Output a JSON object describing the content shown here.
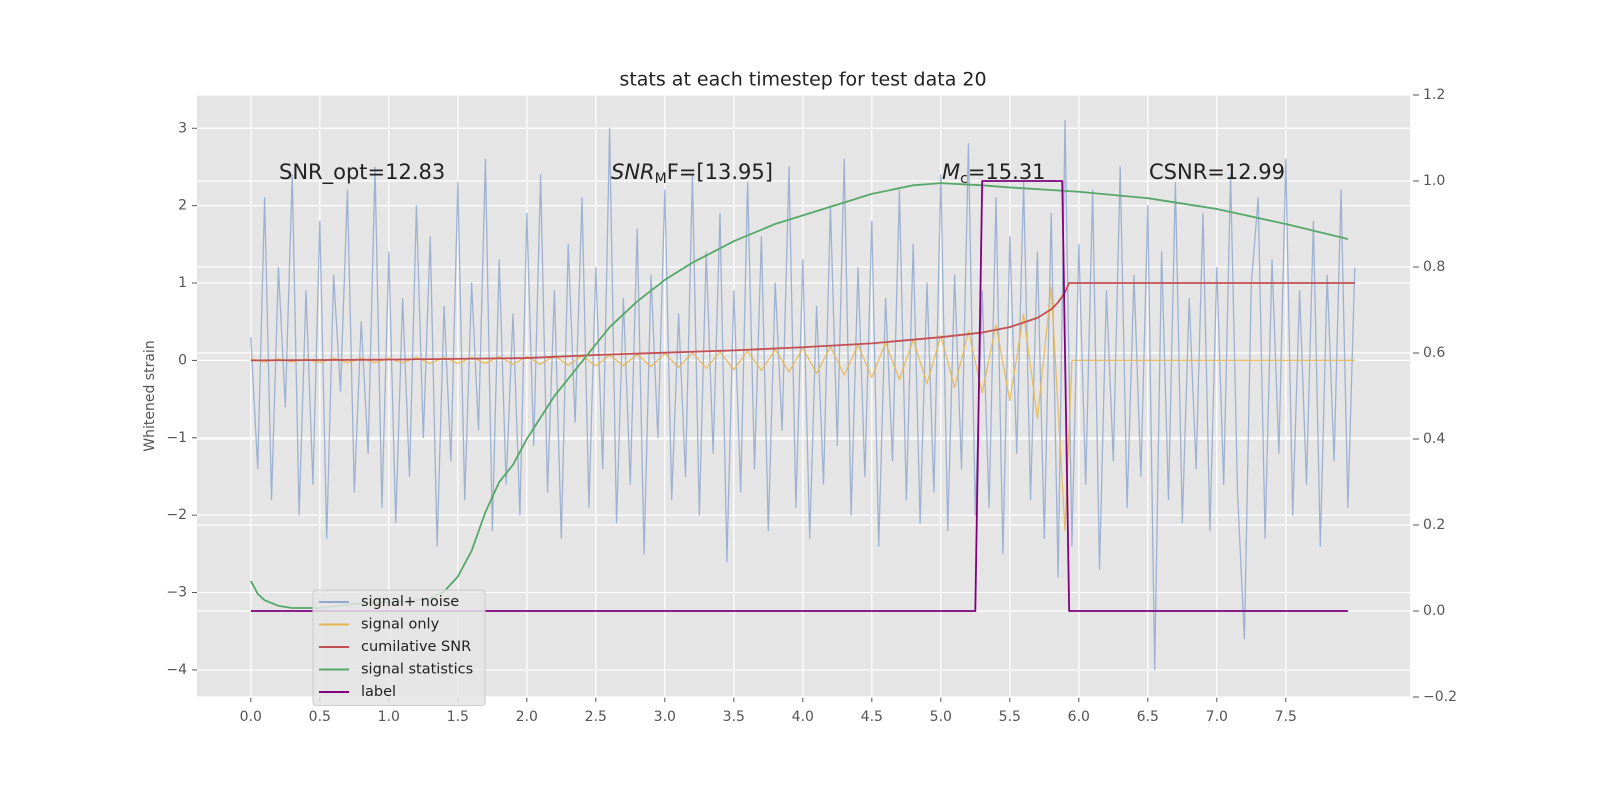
{
  "chart_data": {
    "type": "line",
    "title": "stats at each timestep for test data 20",
    "y_label": "Whitened strain",
    "annotations": [
      {
        "parts": [
          "SNR_opt=12.83"
        ]
      },
      {
        "parts": [
          "SNR",
          "M",
          "F=[13.95]"
        ]
      },
      {
        "parts": [
          "M",
          "c",
          "=15.31"
        ]
      },
      {
        "parts": [
          "CSNR=12.99"
        ]
      }
    ],
    "xlim": [
      -0.39,
      8.4
    ],
    "ylim": [
      -4.35,
      3.43
    ],
    "y2lim": [
      -0.2,
      1.2
    ],
    "xticks": [
      {
        "value": 0,
        "label": "0.0"
      },
      {
        "value": 0.5,
        "label": "0.5"
      },
      {
        "value": 1,
        "label": "1.0"
      },
      {
        "value": 1.5,
        "label": "1.5"
      },
      {
        "value": 2,
        "label": "2.0"
      },
      {
        "value": 2.5,
        "label": "2.5"
      },
      {
        "value": 3,
        "label": "3.0"
      },
      {
        "value": 3.5,
        "label": "3.5"
      },
      {
        "value": 4,
        "label": "4.0"
      },
      {
        "value": 4.5,
        "label": "4.5"
      },
      {
        "value": 5,
        "label": "5.0"
      },
      {
        "value": 5.5,
        "label": "5.5"
      },
      {
        "value": 6,
        "label": "6.0"
      },
      {
        "value": 6.5,
        "label": "6.5"
      },
      {
        "value": 7,
        "label": "7.0"
      },
      {
        "value": 7.5,
        "label": "7.5"
      }
    ],
    "yticks": [
      {
        "value": -4,
        "label": "−4"
      },
      {
        "value": -3,
        "label": "−3"
      },
      {
        "value": -2,
        "label": "−2"
      },
      {
        "value": -1,
        "label": "−1"
      },
      0,
      1,
      2,
      3
    ],
    "y2ticks": [
      {
        "value": -0.2,
        "label": "−0.2"
      },
      {
        "value": 0,
        "label": "0.0"
      },
      0.2,
      0.4,
      0.6,
      0.8,
      {
        "value": 1,
        "label": "1.0"
      },
      1.2
    ],
    "grid": true,
    "legend": "lower left",
    "series": [
      {
        "name": "signal+ noise",
        "color": "#92a8cd",
        "x": [
          0,
          0.05,
          0.1,
          0.15,
          0.2,
          0.25,
          0.3,
          0.35,
          0.4,
          0.45,
          0.5,
          0.55,
          0.6,
          0.65,
          0.7,
          0.75,
          0.8,
          0.85,
          0.9,
          0.95,
          1,
          1.05,
          1.1,
          1.15,
          1.2,
          1.25,
          1.3,
          1.35,
          1.4,
          1.45,
          1.5,
          1.55,
          1.6,
          1.65,
          1.7,
          1.75,
          1.8,
          1.85,
          1.9,
          1.95,
          2,
          2.05,
          2.1,
          2.15,
          2.2,
          2.25,
          2.3,
          2.35,
          2.4,
          2.45,
          2.5,
          2.55,
          2.6,
          2.65,
          2.7,
          2.75,
          2.8,
          2.85,
          2.9,
          2.95,
          3,
          3.05,
          3.1,
          3.15,
          3.2,
          3.25,
          3.3,
          3.35,
          3.4,
          3.45,
          3.5,
          3.55,
          3.6,
          3.65,
          3.7,
          3.75,
          3.8,
          3.85,
          3.9,
          3.95,
          4,
          4.05,
          4.1,
          4.15,
          4.2,
          4.25,
          4.3,
          4.35,
          4.4,
          4.45,
          4.5,
          4.55,
          4.6,
          4.65,
          4.7,
          4.75,
          4.8,
          4.85,
          4.9,
          4.95,
          5,
          5.05,
          5.1,
          5.15,
          5.2,
          5.25,
          5.3,
          5.35,
          5.4,
          5.45,
          5.5,
          5.55,
          5.6,
          5.65,
          5.7,
          5.75,
          5.8,
          5.85,
          5.9,
          5.95,
          6,
          6.05,
          6.1,
          6.15,
          6.2,
          6.25,
          6.3,
          6.35,
          6.4,
          6.45,
          6.5,
          6.55,
          6.6,
          6.65,
          6.7,
          6.75,
          6.8,
          6.85,
          6.9,
          6.95,
          7,
          7.05,
          7.1,
          7.15,
          7.2,
          7.25,
          7.3,
          7.35,
          7.4,
          7.45,
          7.5,
          7.55,
          7.6,
          7.65,
          7.7,
          7.75,
          7.8,
          7.85,
          7.9,
          7.95,
          8
        ],
        "values": [
          0.3,
          -1.4,
          2.1,
          -1.8,
          1.2,
          -0.6,
          2.4,
          -2.0,
          0.9,
          -1.6,
          1.8,
          -2.3,
          1.1,
          -0.4,
          2.2,
          -1.7,
          0.5,
          -1.2,
          2.5,
          -1.9,
          1.4,
          -2.1,
          0.8,
          -1.5,
          2.0,
          -1.0,
          1.6,
          -2.4,
          0.7,
          -1.3,
          2.3,
          -1.8,
          1.0,
          -0.9,
          2.6,
          -2.2,
          1.3,
          -1.6,
          0.6,
          -2.0,
          1.9,
          -1.1,
          2.4,
          -1.7,
          0.9,
          -2.3,
          1.5,
          -0.8,
          2.1,
          -1.9,
          1.2,
          -1.4,
          3.0,
          -2.1,
          0.8,
          -1.6,
          1.7,
          -2.5,
          1.1,
          -1.0,
          2.2,
          -1.8,
          0.6,
          -1.5,
          2.4,
          -2.0,
          1.4,
          -1.2,
          1.9,
          -2.6,
          0.9,
          -1.7,
          2.3,
          -1.4,
          1.6,
          -2.2,
          1.0,
          -0.9,
          2.5,
          -1.9,
          1.3,
          -2.3,
          0.7,
          -1.6,
          2.0,
          -1.1,
          2.6,
          -2.0,
          1.2,
          -1.5,
          1.8,
          -2.4,
          0.8,
          -1.3,
          2.2,
          -1.8,
          1.5,
          -2.1,
          1.0,
          -1.7,
          2.4,
          -2.2,
          1.1,
          -1.4,
          2.8,
          -2.0,
          0.9,
          -1.9,
          2.1,
          -2.5,
          1.6,
          -1.2,
          2.3,
          -1.8,
          1.4,
          -2.3,
          1.9,
          -2.8,
          3.1,
          -2.4,
          1.5,
          -1.6,
          2.2,
          -2.7,
          0.9,
          -1.3,
          2.5,
          -1.9,
          1.1,
          -1.5,
          2.0,
          -4.0,
          1.4,
          -1.8,
          2.3,
          -2.1,
          0.8,
          -1.4,
          1.9,
          -2.2,
          1.2,
          -1.6,
          2.4,
          -1.7,
          -3.6,
          1.0,
          2.1,
          -2.3,
          1.3,
          -1.2,
          2.6,
          -2.0,
          0.9,
          -1.6,
          1.8,
          -2.4,
          1.1,
          -1.3,
          2.2,
          -1.9,
          1.2
        ]
      },
      {
        "name": "signal only",
        "color": "#e8b64a",
        "x": [
          0,
          0.1,
          0.2,
          0.3,
          0.4,
          0.5,
          0.6,
          0.7,
          0.8,
          0.9,
          1,
          1.1,
          1.2,
          1.3,
          1.4,
          1.5,
          1.6,
          1.7,
          1.8,
          1.9,
          2,
          2.1,
          2.2,
          2.3,
          2.4,
          2.5,
          2.6,
          2.7,
          2.8,
          2.9,
          3,
          3.1,
          3.2,
          3.3,
          3.4,
          3.5,
          3.6,
          3.7,
          3.8,
          3.9,
          4,
          4.1,
          4.2,
          4.3,
          4.4,
          4.5,
          4.6,
          4.7,
          4.8,
          4.9,
          5,
          5.1,
          5.2,
          5.3,
          5.4,
          5.5,
          5.6,
          5.7,
          5.8,
          5.9,
          5.95,
          8
        ],
        "values": [
          0.02,
          -0.02,
          0.02,
          -0.02,
          0.02,
          -0.03,
          0.03,
          -0.03,
          0.03,
          -0.03,
          0.03,
          -0.03,
          0.04,
          -0.04,
          0.04,
          -0.04,
          0.04,
          -0.04,
          0.05,
          -0.05,
          0.05,
          -0.05,
          0.06,
          -0.06,
          0.06,
          -0.07,
          0.07,
          -0.07,
          0.08,
          -0.08,
          0.09,
          -0.09,
          0.1,
          -0.1,
          0.11,
          -0.12,
          0.12,
          -0.13,
          0.14,
          -0.15,
          0.16,
          -0.17,
          0.18,
          -0.19,
          0.2,
          -0.22,
          0.23,
          -0.25,
          0.27,
          -0.3,
          0.32,
          -0.35,
          0.38,
          -0.42,
          0.46,
          -0.52,
          0.6,
          -0.75,
          0.95,
          -2.2,
          0,
          0
        ]
      },
      {
        "name": "cumilative SNR",
        "color": "#c44e52",
        "x": [
          0,
          1,
          2,
          2.5,
          3,
          3.5,
          4,
          4.5,
          5,
          5.3,
          5.5,
          5.7,
          5.8,
          5.85,
          5.9,
          5.93,
          6.5,
          8
        ],
        "values": [
          0,
          0.01,
          0.03,
          0.07,
          0.1,
          0.13,
          0.17,
          0.22,
          0.3,
          0.36,
          0.43,
          0.55,
          0.66,
          0.75,
          0.88,
          1.0,
          1.0,
          1.0
        ]
      },
      {
        "name": "signal statistics",
        "color": "#55a868",
        "axis": "y2",
        "x": [
          0,
          0.05,
          0.1,
          0.2,
          0.3,
          0.5,
          0.7,
          0.9,
          1.1,
          1.3,
          1.4,
          1.5,
          1.6,
          1.7,
          1.8,
          1.9,
          2,
          2.2,
          2.4,
          2.6,
          2.8,
          3,
          3.2,
          3.5,
          3.8,
          4,
          4.3,
          4.5,
          4.8,
          5,
          5.3,
          5.5,
          6,
          6.5,
          7,
          7.5,
          7.95
        ],
        "values": [
          0.07,
          0.04,
          0.025,
          0.012,
          0.007,
          0.007,
          0.015,
          0.02,
          0.02,
          0.03,
          0.045,
          0.08,
          0.14,
          0.23,
          0.3,
          0.34,
          0.4,
          0.5,
          0.58,
          0.66,
          0.72,
          0.77,
          0.81,
          0.86,
          0.9,
          0.92,
          0.95,
          0.97,
          0.99,
          0.995,
          0.99,
          0.985,
          0.975,
          0.96,
          0.935,
          0.9,
          0.865
        ]
      },
      {
        "name": "label",
        "color": "#800080",
        "axis": "y2",
        "x": [
          0,
          5.25,
          5.3,
          5.88,
          5.93,
          7.95
        ],
        "values": [
          0,
          0,
          1,
          1,
          0,
          0
        ]
      }
    ]
  }
}
